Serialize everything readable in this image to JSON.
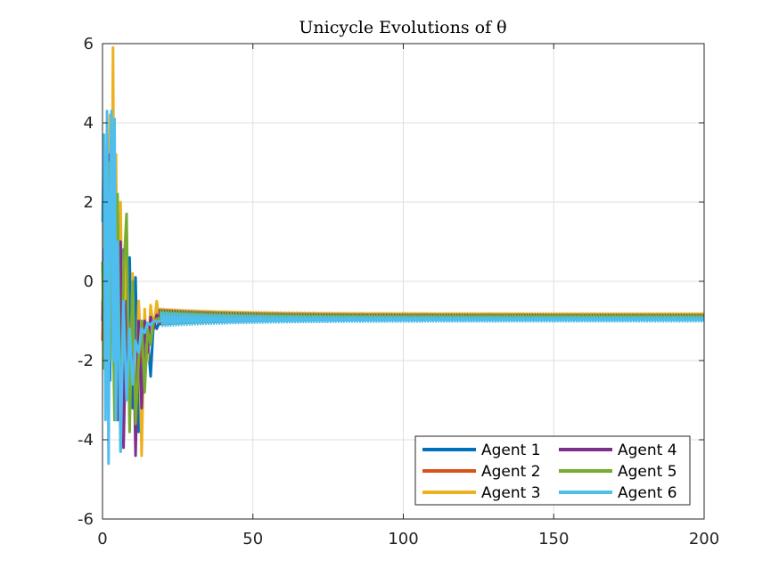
{
  "chart_data": {
    "type": "line",
    "title": "Unicycle Evolutions of θ",
    "xlabel": "",
    "ylabel": "",
    "xlim": [
      0,
      200
    ],
    "ylim": [
      -6,
      6
    ],
    "xticks": [
      0,
      50,
      100,
      150,
      200
    ],
    "xtick_labels": [
      "0",
      "50",
      "100",
      "150",
      "200"
    ],
    "yticks": [
      -6,
      -4,
      -2,
      0,
      2,
      4,
      6
    ],
    "ytick_labels": [
      "-6",
      "-4",
      "-2",
      "0",
      "2",
      "4",
      "6"
    ],
    "grid": true,
    "legend_position": "bottom-right",
    "legend_columns": 2,
    "series": [
      {
        "name": "Agent 1",
        "color": "#0072BD",
        "steady_value": -0.92,
        "x": [
          0,
          0.5,
          1,
          1.5,
          2,
          2.5,
          3,
          4,
          5,
          6,
          7,
          8,
          9,
          10,
          11,
          12,
          13,
          14,
          15,
          16,
          17,
          18,
          20,
          22,
          25,
          30,
          40,
          60,
          100,
          150,
          200
        ],
        "y": [
          -0.5,
          -1.8,
          1.0,
          -1.5,
          2.2,
          -2.5,
          2.0,
          -1.5,
          1.2,
          -3.0,
          0.8,
          -2.6,
          0.6,
          -3.2,
          0.1,
          -3.8,
          -1.0,
          -2.2,
          -1.4,
          -2.4,
          -1.0,
          -1.2,
          -0.85,
          -0.95,
          -0.9,
          -0.92,
          -0.92,
          -0.92,
          -0.92,
          -0.92,
          -0.92
        ]
      },
      {
        "name": "Agent 2",
        "color": "#D95319",
        "steady_value": -0.88,
        "x": [
          0,
          0.5,
          1,
          1.5,
          2,
          2.5,
          3,
          4,
          5,
          6,
          7,
          8,
          9,
          10,
          11,
          12,
          13,
          14,
          15,
          16,
          17,
          18,
          20,
          22,
          25,
          30,
          40,
          60,
          100,
          150,
          200
        ],
        "y": [
          -1.5,
          0.8,
          -2.0,
          1.5,
          -1.2,
          2.0,
          -0.5,
          1.0,
          -2.0,
          0.5,
          -3.2,
          -0.2,
          -2.8,
          -0.8,
          -3.5,
          -0.5,
          -2.5,
          -0.9,
          -1.6,
          -0.8,
          -1.0,
          -0.8,
          -0.95,
          -0.85,
          -0.9,
          -0.88,
          -0.88,
          -0.88,
          -0.88,
          -0.88,
          -0.88
        ]
      },
      {
        "name": "Agent 3",
        "color": "#EDB120",
        "steady_value": -0.86,
        "x": [
          0,
          0.5,
          1,
          1.5,
          2,
          2.5,
          3,
          3.5,
          4,
          4.5,
          5,
          6,
          7,
          8,
          9,
          10,
          11,
          12,
          13,
          14,
          15,
          16,
          17,
          18,
          19,
          20,
          22,
          25,
          30,
          40,
          60,
          100,
          150,
          200
        ],
        "y": [
          -0.8,
          1.5,
          -2.2,
          2.8,
          -3.0,
          4.2,
          -1.0,
          5.9,
          -1.5,
          3.2,
          -2.5,
          2.0,
          -4.0,
          1.2,
          -3.5,
          0.2,
          -3.8,
          -0.5,
          -4.4,
          -0.7,
          -2.0,
          -0.6,
          -1.2,
          -0.5,
          -1.0,
          -0.75,
          -0.9,
          -0.8,
          -0.85,
          -0.86,
          -0.86,
          -0.86,
          -0.86,
          -0.86
        ]
      },
      {
        "name": "Agent 4",
        "color": "#7E2F8E",
        "steady_value": -0.9,
        "x": [
          0,
          0.5,
          1,
          1.5,
          2,
          2.5,
          3,
          4,
          5,
          6,
          7,
          8,
          9,
          10,
          11,
          12,
          13,
          14,
          15,
          16,
          17,
          18,
          20,
          22,
          25,
          30,
          40,
          60,
          100,
          150,
          200
        ],
        "y": [
          -1.0,
          0.8,
          -1.8,
          3.8,
          -2.5,
          3.2,
          -1.5,
          2.5,
          -3.5,
          1.0,
          -4.2,
          -0.5,
          -3.0,
          -0.2,
          -4.4,
          -1.0,
          -3.2,
          -1.0,
          -1.8,
          -0.9,
          -1.2,
          -0.85,
          -1.0,
          -0.88,
          -0.92,
          -0.9,
          -0.9,
          -0.9,
          -0.9,
          -0.9,
          -0.9
        ]
      },
      {
        "name": "Agent 5",
        "color": "#77AC30",
        "steady_value": -0.9,
        "x": [
          0,
          0.5,
          1,
          1.5,
          2,
          2.5,
          3,
          4,
          5,
          6,
          7,
          8,
          9,
          10,
          11,
          12,
          13,
          14,
          15,
          16,
          17,
          18,
          20,
          22,
          25,
          30,
          40,
          60,
          100,
          150,
          200
        ],
        "y": [
          0.5,
          -2.2,
          2.5,
          -3.0,
          3.0,
          -2.0,
          1.5,
          -3.5,
          2.2,
          -4.3,
          0.2,
          1.7,
          -3.8,
          0.0,
          -3.6,
          -2.0,
          -1.0,
          -2.8,
          -1.2,
          -1.6,
          -1.0,
          -0.95,
          -0.9,
          -0.92,
          -0.9,
          -0.9,
          -0.9,
          -0.9,
          -0.9,
          -0.9,
          -0.9
        ]
      },
      {
        "name": "Agent 6",
        "color": "#4DBEEE",
        "steady_value": -0.96,
        "x": [
          0,
          0.5,
          1,
          1.5,
          2,
          2.5,
          3,
          3.5,
          4,
          4.5,
          5,
          6,
          7,
          8,
          9,
          10,
          11,
          12,
          13,
          14,
          15,
          16,
          17,
          18,
          20,
          22,
          25,
          30,
          40,
          60,
          100,
          150,
          200
        ],
        "y": [
          1.5,
          3.7,
          -3.5,
          4.3,
          -4.6,
          2.0,
          4.3,
          -2.0,
          4.1,
          -3.5,
          1.0,
          -4.3,
          -0.5,
          -3.0,
          -1.2,
          -2.6,
          -1.5,
          -1.8,
          -1.2,
          -1.3,
          -1.05,
          -1.1,
          -1.0,
          -1.02,
          -0.98,
          -1.0,
          -0.97,
          -0.96,
          -0.96,
          -0.96,
          -0.96,
          -0.96,
          -0.96
        ]
      }
    ]
  }
}
